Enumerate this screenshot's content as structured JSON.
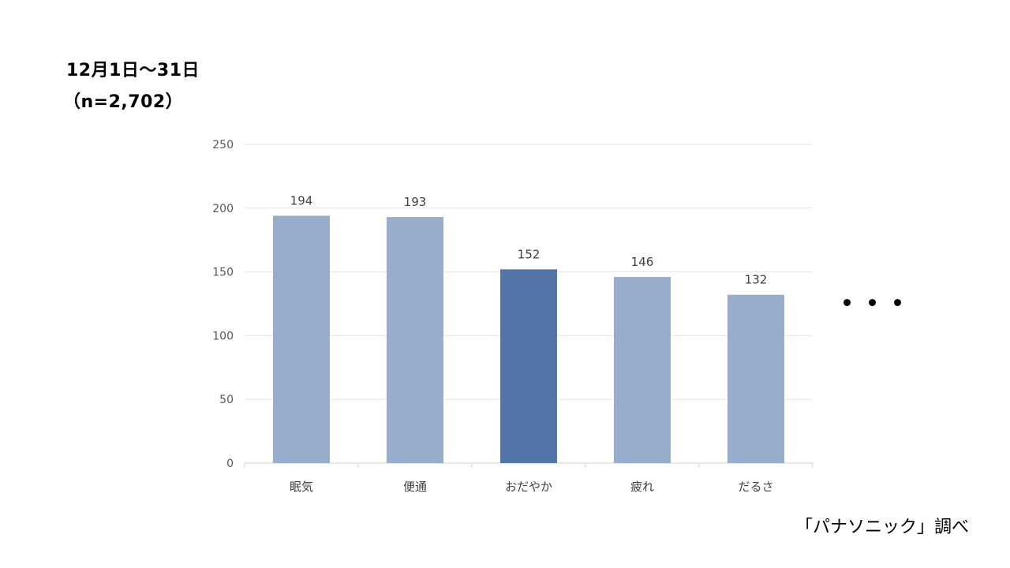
{
  "heading": {
    "line1": "12月1日～31日",
    "line2": "（n=2,702）"
  },
  "source": "「パナソニック」調べ",
  "chart_data": {
    "type": "bar",
    "categories": [
      "眠気",
      "便通",
      "おだやか",
      "疲れ",
      "だるさ"
    ],
    "values": [
      194,
      193,
      152,
      146,
      132
    ],
    "data_labels": [
      "194",
      "193",
      "152",
      "146",
      "132"
    ],
    "highlight_index": 2,
    "ylim": [
      0,
      250
    ],
    "yticks": [
      0,
      50,
      100,
      150,
      200,
      250
    ],
    "grid": true,
    "legend": "none",
    "colors": {
      "bar": "#98adcc",
      "highlight": "#5375a8",
      "grid": "#e6e6e6",
      "axis": "#d0d0d0"
    },
    "continuation_marker": "・・・"
  }
}
